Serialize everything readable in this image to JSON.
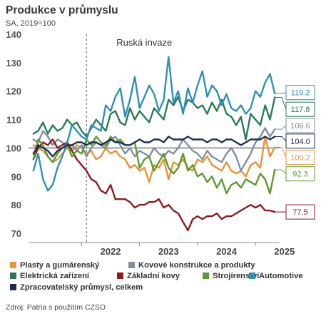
{
  "title": "Produkce v průmyslu",
  "subtitle": "SA, 2019=100",
  "source": "Zdroj: Patria s použitím CZSO",
  "chart_data": {
    "type": "line",
    "ylim": [
      70,
      140
    ],
    "yticks": [
      70,
      80,
      90,
      100,
      110,
      120,
      130,
      140
    ],
    "xticks": [
      "2022",
      "2023",
      "2024",
      "2025"
    ],
    "xlim": [
      "2021-02",
      "2025-06"
    ],
    "reference_line": {
      "y": 100
    },
    "annotation": {
      "label": "Ruská invaze",
      "x": "2022-02"
    },
    "series": [
      {
        "name": "Plasty a gumárenský",
        "color": "#e8923a",
        "x": [
          "2021-03",
          "2021-04",
          "2021-05",
          "2021-06",
          "2021-07",
          "2021-08",
          "2021-09",
          "2021-10",
          "2021-11",
          "2021-12",
          "2022-01",
          "2022-02",
          "2022-03",
          "2022-04",
          "2022-05",
          "2022-06",
          "2022-07",
          "2022-08",
          "2022-09",
          "2022-10",
          "2022-11",
          "2022-12",
          "2023-01",
          "2023-02",
          "2023-03",
          "2023-04",
          "2023-05",
          "2023-06",
          "2023-07",
          "2023-08",
          "2023-09",
          "2023-10",
          "2023-11",
          "2023-12",
          "2024-01",
          "2024-02",
          "2024-03",
          "2024-04",
          "2024-05",
          "2024-06",
          "2024-07",
          "2024-08",
          "2024-09",
          "2024-10",
          "2024-11",
          "2024-12",
          "2025-01",
          "2025-02",
          "2025-03",
          "2025-04",
          "2025-05"
        ],
        "y": [
          101,
          100,
          99,
          97,
          95,
          96,
          98,
          100,
          99,
          101,
          100,
          98,
          99,
          96,
          97,
          100,
          98,
          99,
          97,
          96,
          93,
          94,
          92,
          93,
          88,
          94,
          93,
          96,
          89,
          95,
          94,
          96,
          93,
          92,
          96,
          95,
          97,
          94,
          93,
          92,
          95,
          92,
          91,
          92,
          90,
          94,
          95,
          93,
          104,
          97,
          100.2
        ]
      },
      {
        "name": "Kovové konstrukce a produkty",
        "color": "#7d8fa0",
        "x": [
          "2021-03",
          "2021-04",
          "2021-05",
          "2021-06",
          "2021-07",
          "2021-08",
          "2021-09",
          "2021-10",
          "2021-11",
          "2021-12",
          "2022-01",
          "2022-02",
          "2022-03",
          "2022-04",
          "2022-05",
          "2022-06",
          "2022-07",
          "2022-08",
          "2022-09",
          "2022-10",
          "2022-11",
          "2022-12",
          "2023-01",
          "2023-02",
          "2023-03",
          "2023-04",
          "2023-05",
          "2023-06",
          "2023-07",
          "2023-08",
          "2023-09",
          "2023-10",
          "2023-11",
          "2023-12",
          "2024-01",
          "2024-02",
          "2024-03",
          "2024-04",
          "2024-05",
          "2024-06",
          "2024-07",
          "2024-08",
          "2024-09",
          "2024-10",
          "2024-11",
          "2024-12",
          "2025-01",
          "2025-02",
          "2025-03",
          "2025-04",
          "2025-05"
        ],
        "y": [
          103,
          102,
          106,
          104,
          101,
          103,
          102,
          100,
          101,
          99,
          101,
          97,
          100,
          102,
          101,
          100,
          103,
          104,
          101,
          98,
          100,
          97,
          99,
          98,
          97,
          100,
          98,
          97,
          99,
          98,
          100,
          103,
          101,
          99,
          98,
          96,
          99,
          97,
          96,
          95,
          98,
          100,
          97,
          92,
          95,
          98,
          102,
          104,
          107,
          104,
          106.6
        ]
      },
      {
        "name": "Elektrická zařízení",
        "color": "#2a7a58",
        "x": [
          "2021-03",
          "2021-04",
          "2021-05",
          "2021-06",
          "2021-07",
          "2021-08",
          "2021-09",
          "2021-10",
          "2021-11",
          "2021-12",
          "2022-01",
          "2022-02",
          "2022-03",
          "2022-04",
          "2022-05",
          "2022-06",
          "2022-07",
          "2022-08",
          "2022-09",
          "2022-10",
          "2022-11",
          "2022-12",
          "2023-01",
          "2023-02",
          "2023-03",
          "2023-04",
          "2023-05",
          "2023-06",
          "2023-07",
          "2023-08",
          "2023-09",
          "2023-10",
          "2023-11",
          "2023-12",
          "2024-01",
          "2024-02",
          "2024-03",
          "2024-04",
          "2024-05",
          "2024-06",
          "2024-07",
          "2024-08",
          "2024-09",
          "2024-10",
          "2024-11",
          "2024-12",
          "2025-01",
          "2025-02",
          "2025-03",
          "2025-04",
          "2025-05"
        ],
        "y": [
          105,
          106,
          109,
          105,
          108,
          106,
          107,
          110,
          108,
          109,
          106,
          104,
          107,
          110,
          108,
          106,
          112,
          113,
          109,
          108,
          114,
          110,
          113,
          111,
          109,
          114,
          112,
          110,
          117,
          115,
          118,
          113,
          117,
          116,
          114,
          115,
          112,
          116,
          113,
          117,
          112,
          111,
          108,
          111,
          103,
          112,
          110,
          108,
          115,
          110,
          117.8
        ]
      },
      {
        "name": "Základní kovy",
        "color": "#8e1b1b",
        "x": [
          "2021-03",
          "2021-04",
          "2021-05",
          "2021-06",
          "2021-07",
          "2021-08",
          "2021-09",
          "2021-10",
          "2021-11",
          "2021-12",
          "2022-01",
          "2022-02",
          "2022-03",
          "2022-04",
          "2022-05",
          "2022-06",
          "2022-07",
          "2022-08",
          "2022-09",
          "2022-10",
          "2022-11",
          "2022-12",
          "2023-01",
          "2023-02",
          "2023-03",
          "2023-04",
          "2023-05",
          "2023-06",
          "2023-07",
          "2023-08",
          "2023-09",
          "2023-10",
          "2023-11",
          "2023-12",
          "2024-01",
          "2024-02",
          "2024-03",
          "2024-04",
          "2024-05",
          "2024-06",
          "2024-07",
          "2024-08",
          "2024-09",
          "2024-10",
          "2024-11",
          "2024-12",
          "2025-01",
          "2025-02",
          "2025-03",
          "2025-04",
          "2025-05"
        ],
        "y": [
          96,
          100,
          102,
          101,
          103,
          100,
          101,
          102,
          99,
          96,
          94,
          92,
          89,
          88,
          85,
          84,
          87,
          82,
          82,
          82,
          81,
          79,
          80,
          80,
          81,
          81,
          82,
          79,
          80,
          78,
          77,
          74,
          71,
          75,
          76,
          75,
          76,
          76,
          77,
          75,
          76,
          76,
          77,
          78,
          79,
          80,
          79,
          80,
          78,
          78,
          77.5
        ]
      },
      {
        "name": "Strojírenství",
        "color": "#5d9a2e",
        "x": [
          "2021-03",
          "2021-04",
          "2021-05",
          "2021-06",
          "2021-07",
          "2021-08",
          "2021-09",
          "2021-10",
          "2021-11",
          "2021-12",
          "2022-01",
          "2022-02",
          "2022-03",
          "2022-04",
          "2022-05",
          "2022-06",
          "2022-07",
          "2022-08",
          "2022-09",
          "2022-10",
          "2022-11",
          "2022-12",
          "2023-01",
          "2023-02",
          "2023-03",
          "2023-04",
          "2023-05",
          "2023-06",
          "2023-07",
          "2023-08",
          "2023-09",
          "2023-10",
          "2023-11",
          "2023-12",
          "2024-01",
          "2024-02",
          "2024-03",
          "2024-04",
          "2024-05",
          "2024-06",
          "2024-07",
          "2024-08",
          "2024-09",
          "2024-10",
          "2024-11",
          "2024-12",
          "2025-01",
          "2025-02",
          "2025-03",
          "2025-04",
          "2025-05"
        ],
        "y": [
          96,
          103,
          101,
          97,
          95,
          98,
          100,
          101,
          97,
          99,
          98,
          103,
          101,
          104,
          102,
          101,
          104,
          102,
          103,
          101,
          101,
          102,
          93,
          96,
          97,
          92,
          95,
          98,
          93,
          91,
          93,
          98,
          92,
          94,
          90,
          91,
          88,
          90,
          86,
          89,
          84,
          87,
          88,
          86,
          89,
          88,
          87,
          91,
          89,
          84,
          92.3
        ]
      },
      {
        "name": "Automotive",
        "color": "#2f8fb8",
        "x": [
          "2021-03",
          "2021-04",
          "2021-05",
          "2021-06",
          "2021-07",
          "2021-08",
          "2021-09",
          "2021-10",
          "2021-11",
          "2021-12",
          "2022-01",
          "2022-02",
          "2022-03",
          "2022-04",
          "2022-05",
          "2022-06",
          "2022-07",
          "2022-08",
          "2022-09",
          "2022-10",
          "2022-11",
          "2022-12",
          "2023-01",
          "2023-02",
          "2023-03",
          "2023-04",
          "2023-05",
          "2023-06",
          "2023-07",
          "2023-08",
          "2023-09",
          "2023-10",
          "2023-11",
          "2023-12",
          "2024-01",
          "2024-02",
          "2024-03",
          "2024-04",
          "2024-05",
          "2024-06",
          "2024-07",
          "2024-08",
          "2024-09",
          "2024-10",
          "2024-11",
          "2024-12",
          "2025-01",
          "2025-02",
          "2025-03",
          "2025-04",
          "2025-05"
        ],
        "y": [
          92,
          98,
          89,
          85,
          87,
          93,
          97,
          102,
          108,
          106,
          104,
          103,
          108,
          107,
          106,
          115,
          113,
          118,
          121,
          111,
          117,
          125,
          114,
          118,
          122,
          119,
          113,
          117,
          132,
          116,
          120,
          112,
          121,
          116,
          122,
          127,
          118,
          122,
          120,
          115,
          119,
          114,
          113,
          115,
          112,
          114,
          120,
          118,
          123,
          126,
          119.2
        ]
      },
      {
        "name": "Zpracovatelský průmysl, celkem",
        "color": "#1b2f55",
        "x": [
          "2021-03",
          "2021-04",
          "2021-05",
          "2021-06",
          "2021-07",
          "2021-08",
          "2021-09",
          "2021-10",
          "2021-11",
          "2021-12",
          "2022-01",
          "2022-02",
          "2022-03",
          "2022-04",
          "2022-05",
          "2022-06",
          "2022-07",
          "2022-08",
          "2022-09",
          "2022-10",
          "2022-11",
          "2022-12",
          "2023-01",
          "2023-02",
          "2023-03",
          "2023-04",
          "2023-05",
          "2023-06",
          "2023-07",
          "2023-08",
          "2023-09",
          "2023-10",
          "2023-11",
          "2023-12",
          "2024-01",
          "2024-02",
          "2024-03",
          "2024-04",
          "2024-05",
          "2024-06",
          "2024-07",
          "2024-08",
          "2024-09",
          "2024-10",
          "2024-11",
          "2024-12",
          "2025-01",
          "2025-02",
          "2025-03",
          "2025-04",
          "2025-05"
        ],
        "y": [
          98,
          101,
          100,
          99,
          97,
          99,
          100,
          101,
          101,
          102,
          102,
          101,
          102,
          102,
          101,
          102,
          103,
          102,
          102,
          101,
          101,
          102,
          103,
          102,
          102,
          103,
          103,
          102,
          104,
          103,
          103,
          103,
          104,
          103,
          103,
          103,
          102,
          103,
          103,
          102,
          103,
          103,
          102,
          101,
          102,
          103,
          103,
          103,
          104,
          103,
          104.0
        ]
      }
    ],
    "end_labels": [
      {
        "label": "119.2",
        "value": 119.2,
        "color": "#2f8fb8"
      },
      {
        "label": "117.8",
        "value": 117.8,
        "color": "#2a7a58"
      },
      {
        "label": "106.6",
        "value": 106.6,
        "color": "#7d8fa0"
      },
      {
        "label": "104.0",
        "value": 104.0,
        "color": "#1b2f55"
      },
      {
        "label": "100.2",
        "value": 100.2,
        "color": "#e8923a"
      },
      {
        "label": "92.3",
        "value": 92.3,
        "color": "#5d9a2e"
      },
      {
        "label": "77.5",
        "value": 77.5,
        "color": "#8e1b1b"
      }
    ]
  }
}
